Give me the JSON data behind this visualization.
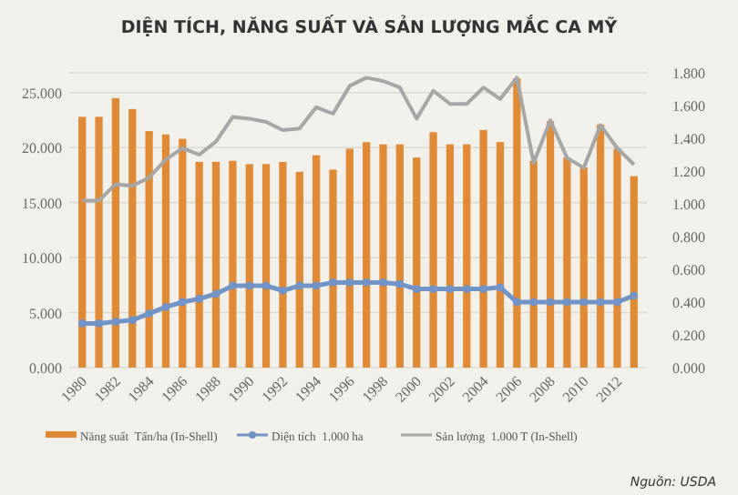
{
  "chart_data": {
    "type": "bar",
    "title": "DIỆN TÍCH, NĂNG SUẤT VÀ SẢN LƯỢNG MẮC CA MỸ",
    "categories": [
      "1980",
      null,
      "1982",
      null,
      "1984",
      null,
      "1986",
      null,
      "1988",
      null,
      "1990",
      null,
      "1992",
      null,
      "1994",
      null,
      "1996",
      null,
      "1998",
      null,
      "2000",
      null,
      "2002",
      null,
      "2004",
      null,
      "2006",
      null,
      "2008",
      null,
      "2010",
      null,
      "2012",
      null
    ],
    "series": [
      {
        "name": "Năng suất  Tấn/ha (In-Shell)",
        "color": "#e08a35",
        "values": [
          22.8,
          22.8,
          24.5,
          23.5,
          21.5,
          21.2,
          20.8,
          18.7,
          18.7,
          18.8,
          18.5,
          18.5,
          18.7,
          17.8,
          19.3,
          18.0,
          19.9,
          20.5,
          20.3,
          20.3,
          19.1,
          21.4,
          20.3,
          20.3,
          21.6,
          20.5,
          26.3,
          18.8,
          22.4,
          19.1,
          18.2,
          22.1,
          19.9,
          17.4
        ]
      },
      {
        "name": "Diện tích  1.000 ha",
        "type": "line",
        "axis": "y2",
        "marker": "circle",
        "color": "#7094c8",
        "values": [
          0.27,
          0.27,
          0.28,
          0.29,
          0.33,
          0.37,
          0.4,
          0.42,
          0.45,
          0.5,
          0.5,
          0.5,
          0.47,
          0.5,
          0.5,
          0.52,
          0.52,
          0.52,
          0.52,
          0.51,
          0.48,
          0.48,
          0.48,
          0.48,
          0.48,
          0.49,
          0.4,
          0.4,
          0.4,
          0.4,
          0.4,
          0.4,
          0.4,
          0.44
        ]
      },
      {
        "name": "Sản lượng  1.000 T (In-Shell)",
        "type": "line",
        "axis": "y2",
        "marker": "none",
        "color": "#a6a6a6",
        "values": [
          1.02,
          1.02,
          1.12,
          1.11,
          1.16,
          1.27,
          1.34,
          1.3,
          1.38,
          1.53,
          1.52,
          1.5,
          1.45,
          1.46,
          1.59,
          1.55,
          1.72,
          1.77,
          1.75,
          1.71,
          1.52,
          1.69,
          1.61,
          1.61,
          1.71,
          1.64,
          1.77,
          1.25,
          1.51,
          1.28,
          1.22,
          1.48,
          1.34,
          1.24
        ]
      }
    ],
    "ylim": [
      0,
      26.8
    ],
    "yticks": [
      {
        "value": 0,
        "label": "0.000"
      },
      {
        "value": 5,
        "label": "5.000"
      },
      {
        "value": 10,
        "label": "10.000"
      },
      {
        "value": 15,
        "label": "15.000"
      },
      {
        "value": 20,
        "label": "20.000"
      },
      {
        "value": 25,
        "label": "25.000"
      }
    ],
    "y2lim": [
      0,
      1.8
    ],
    "y2ticks": [
      {
        "value": 0,
        "label": "0.000"
      },
      {
        "value": 0.2,
        "label": "0.200"
      },
      {
        "value": 0.4,
        "label": "0.400"
      },
      {
        "value": 0.6,
        "label": "0.600"
      },
      {
        "value": 0.8,
        "label": "0.800"
      },
      {
        "value": 1,
        "label": "1.000"
      },
      {
        "value": 1.2,
        "label": "1.200"
      },
      {
        "value": 1.4,
        "label": "1.400"
      },
      {
        "value": 1.6,
        "label": "1.600"
      },
      {
        "value": 1.8,
        "label": "1.800"
      }
    ],
    "grid": "y",
    "legend": "bottom",
    "annotations": [
      "Nguồn: USDA"
    ]
  }
}
